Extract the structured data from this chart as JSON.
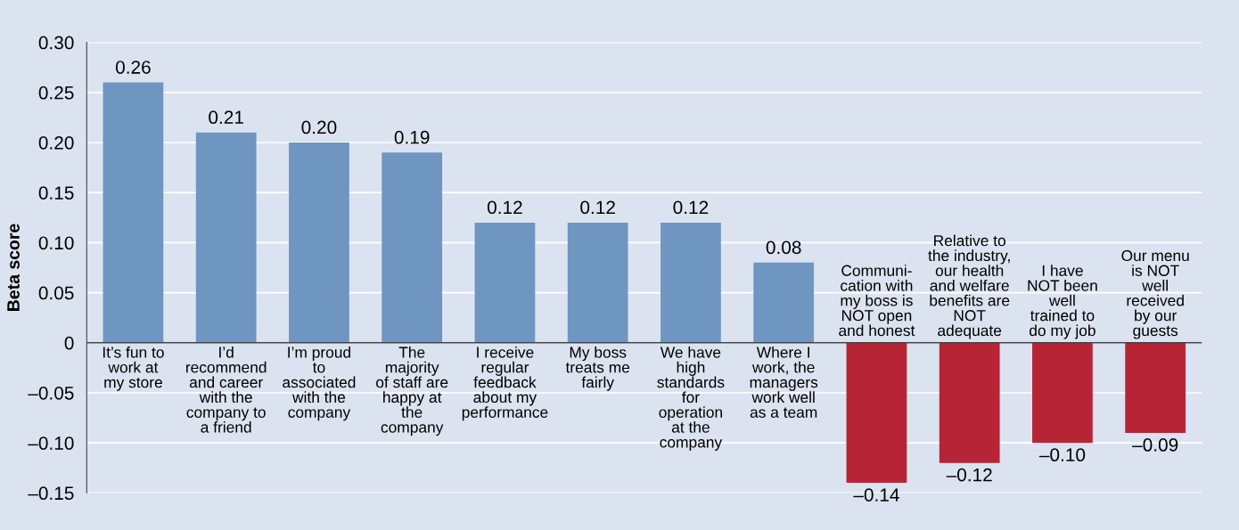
{
  "chart_data": {
    "type": "bar",
    "ylabel": "Beta score",
    "categories": [
      "It’s fun to\nwork at\nmy store",
      "I’d\nrecommend\nand career\nwith the\ncompany to\na friend",
      "I’m proud\nto\nassociated\nwith the\ncompany",
      "The\nmajority\nof staff are\nhappy at\nthe\ncompany",
      "I receive\nregular\nfeedback\nabout my\nperformance",
      "My boss\ntreats me\nfairly",
      "We have\nhigh\nstandards\nfor\noperation\nat the\ncompany",
      "Where I\nwork, the\nmanagers\nwork well\nas a team",
      "Communi-\ncation with\nmy boss is\nNOT open\nand honest",
      "Relative to\nthe industry,\nour health\nand welfare\nbenefits are\nNOT\nadequate",
      "I have\nNOT been\nwell\ntrained to\ndo my job",
      "Our menu\nis NOT\nwell\nreceived\nby our\nguests"
    ],
    "values": [
      0.26,
      0.21,
      0.2,
      0.19,
      0.12,
      0.12,
      0.12,
      0.08,
      -0.14,
      -0.12,
      -0.1,
      -0.09
    ],
    "value_labels": [
      "0.26",
      "0.21",
      "0.20",
      "0.19",
      "0.12",
      "0.12",
      "0.12",
      "0.08",
      "–0.14",
      "–0.12",
      "–0.10",
      "–0.09"
    ],
    "colors": [
      "#6f96c1",
      "#6f96c1",
      "#6f96c1",
      "#6f96c1",
      "#6f96c1",
      "#6f96c1",
      "#6f96c1",
      "#6f96c1",
      "#b72435",
      "#b72435",
      "#b72435",
      "#b72435"
    ],
    "ylim": [
      -0.15,
      0.3
    ],
    "yticks": [
      {
        "value": -0.15,
        "label": "–0.15"
      },
      {
        "value": -0.1,
        "label": "–0.10"
      },
      {
        "value": -0.05,
        "label": "–0.05"
      },
      0,
      {
        "value": 0.05,
        "label": "0.05"
      },
      {
        "value": 0.1,
        "label": "0.10"
      },
      {
        "value": 0.15,
        "label": "0.15"
      },
      {
        "value": 0.2,
        "label": "0.20"
      },
      {
        "value": 0.25,
        "label": "0.25"
      },
      {
        "value": 0.3,
        "label": "0.30"
      }
    ],
    "grid": "y",
    "legend": false
  }
}
